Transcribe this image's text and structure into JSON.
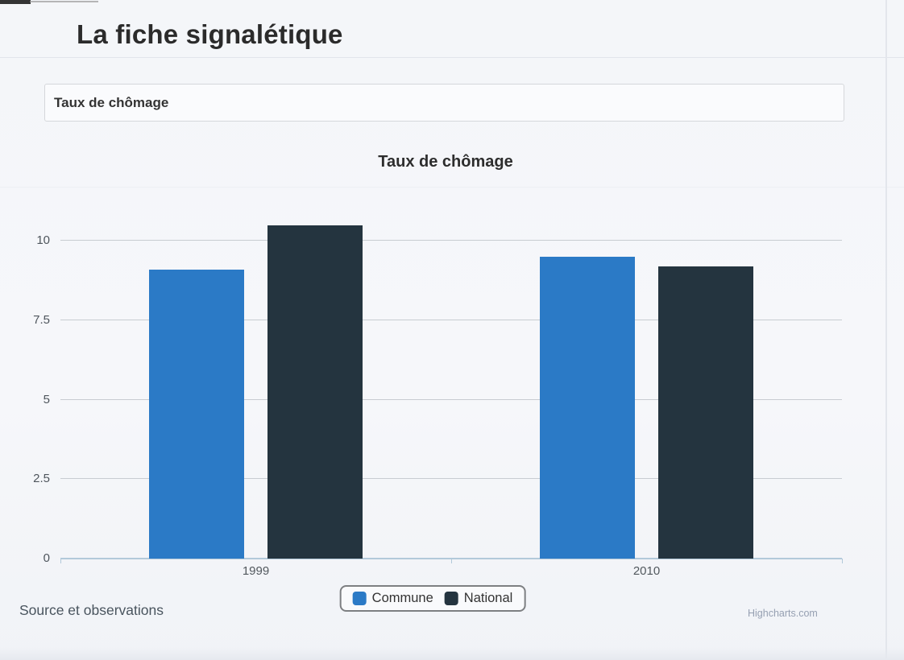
{
  "page": {
    "title": "La fiche signalétique",
    "section_header": "Taux de chômage",
    "source_note": "Source et observations",
    "credit": "Highcharts.com"
  },
  "chart_data": {
    "type": "bar",
    "title": "Taux de chômage",
    "categories": [
      "1999",
      "2010"
    ],
    "series": [
      {
        "name": "Commune",
        "color": "#2b7ac6",
        "values": [
          9.1,
          9.5
        ]
      },
      {
        "name": "National",
        "color": "#24343f",
        "values": [
          10.5,
          9.2
        ]
      }
    ],
    "xlabel": "",
    "ylabel": "",
    "ylim": [
      0,
      11
    ],
    "yticks": [
      0,
      2.5,
      5,
      7.5,
      10
    ],
    "grid": true,
    "legend_position": "bottom-center",
    "gridline_color": "#c8ccd1",
    "axis_line_color": "#b2c9da"
  }
}
